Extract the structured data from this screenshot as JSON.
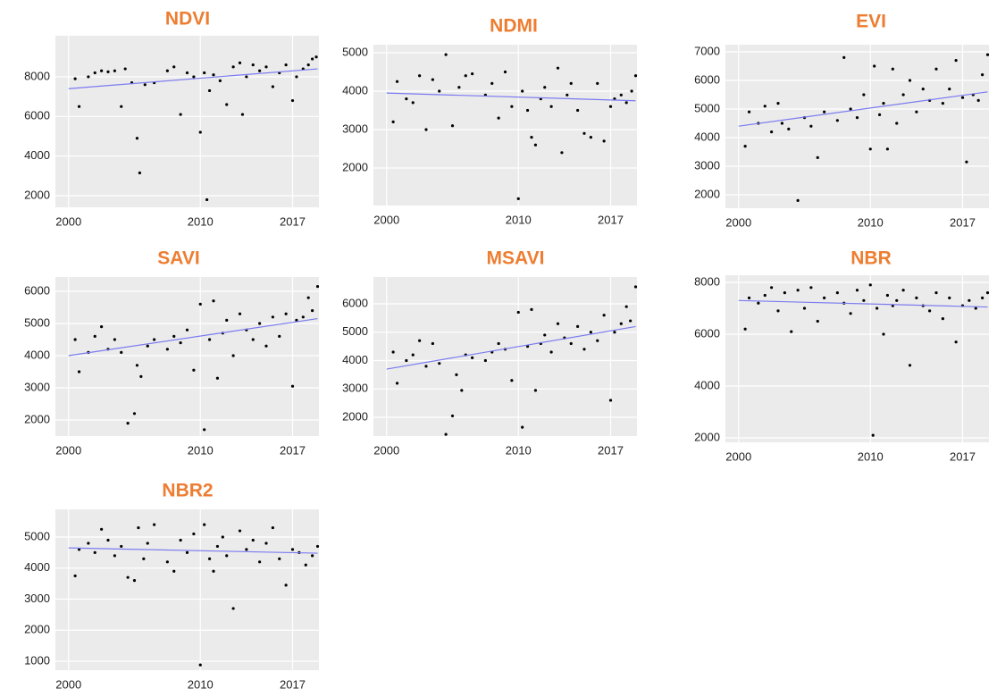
{
  "chart_data": [
    {
      "type": "scatter",
      "title": "NDVI",
      "color": "#000000",
      "x": [
        2000.5,
        2000.8,
        2001.5,
        2002,
        2002.5,
        2003,
        2003.5,
        2004,
        2004.3,
        2004.8,
        2005.2,
        2005.4,
        2005.8,
        2006.5,
        2007.5,
        2008,
        2008.5,
        2009,
        2009.5,
        2010,
        2010.3,
        2010.5,
        2010.7,
        2011,
        2011.5,
        2012,
        2012.5,
        2013,
        2013.2,
        2013.5,
        2014,
        2014.5,
        2015,
        2015.5,
        2016,
        2016.5,
        2017,
        2017.3,
        2017.8,
        2018.2,
        2018.5,
        2018.8
      ],
      "values": [
        7900,
        6500,
        8000,
        8200,
        8300,
        8250,
        8300,
        6500,
        8400,
        7700,
        4900,
        3150,
        7600,
        7700,
        8300,
        8500,
        6100,
        8200,
        8000,
        5200,
        8200,
        1800,
        7300,
        8100,
        7800,
        6600,
        8500,
        8700,
        6100,
        8000,
        8600,
        8300,
        8500,
        7500,
        8200,
        8600,
        6800,
        8000,
        8400,
        8600,
        8900,
        9000
      ],
      "trend": {
        "x": [
          2000,
          2018.9
        ],
        "values": [
          7400,
          8400
        ],
        "color": "#7b7bf0"
      },
      "xlim": [
        1999,
        2019
      ],
      "ylim": [
        1415,
        10070
      ],
      "xticks": [
        2000,
        2010,
        2017
      ],
      "yticks": [
        2000,
        4000,
        6000,
        8000
      ]
    },
    {
      "type": "scatter",
      "title": "NDMI",
      "color": "#000000",
      "x": [
        2000.5,
        2000.8,
        2001.5,
        2002,
        2002.5,
        2003,
        2003.5,
        2004,
        2004.5,
        2005,
        2005.5,
        2006,
        2006.5,
        2007.5,
        2008,
        2008.5,
        2009,
        2009.5,
        2010,
        2010.3,
        2010.7,
        2011,
        2011.3,
        2011.7,
        2012,
        2012.5,
        2013,
        2013.3,
        2013.7,
        2014,
        2014.5,
        2015,
        2015.5,
        2016,
        2016.5,
        2017,
        2017.3,
        2017.8,
        2018.2,
        2018.6,
        2018.9
      ],
      "values": [
        3200,
        4250,
        3800,
        3700,
        4400,
        3000,
        4300,
        4000,
        4950,
        3100,
        4100,
        4400,
        4450,
        3900,
        4200,
        3300,
        4500,
        3600,
        1200,
        4000,
        3500,
        2800,
        2600,
        3800,
        4100,
        3600,
        4600,
        2400,
        3900,
        4200,
        3500,
        2900,
        2800,
        4200,
        2700,
        3600,
        3800,
        3900,
        3700,
        4000,
        4400
      ],
      "trend": {
        "x": [
          2000,
          2018.9
        ],
        "values": [
          3950,
          3750
        ],
        "color": "#7b7bf0"
      },
      "xlim": [
        1999,
        2019
      ],
      "ylim": [
        1023,
        5209
      ],
      "xticks": [
        2000,
        2010,
        2017
      ],
      "yticks": [
        2000,
        3000,
        4000,
        5000
      ]
    },
    {
      "type": "scatter",
      "title": "EVI",
      "color": "#000000",
      "x": [
        2000.5,
        2000.8,
        2001.5,
        2002,
        2002.5,
        2003,
        2003.3,
        2003.8,
        2004.5,
        2005,
        2005.5,
        2006,
        2006.5,
        2007.5,
        2008,
        2008.5,
        2009,
        2009.5,
        2010,
        2010.3,
        2010.7,
        2011,
        2011.3,
        2011.7,
        2012,
        2012.5,
        2013,
        2013.5,
        2014,
        2014.5,
        2015,
        2015.5,
        2016,
        2016.5,
        2017,
        2017.3,
        2017.8,
        2018.2,
        2018.5,
        2018.9
      ],
      "values": [
        3700,
        4900,
        4500,
        5100,
        4200,
        5200,
        4500,
        4300,
        1800,
        4700,
        4400,
        3300,
        4900,
        4600,
        6800,
        5000,
        4700,
        5500,
        3600,
        6500,
        4800,
        5200,
        3600,
        6400,
        4500,
        5500,
        6000,
        4900,
        5700,
        5300,
        6400,
        5200,
        5700,
        6700,
        5400,
        3150,
        5500,
        5300,
        6200,
        6900
      ],
      "trend": {
        "x": [
          2000,
          2018.9
        ],
        "values": [
          4400,
          5600
        ],
        "color": "#7b7bf0"
      },
      "xlim": [
        1999,
        2019
      ],
      "ylim": [
        1531,
        7250
      ],
      "xticks": [
        2000,
        2010,
        2017
      ],
      "yticks": [
        2000,
        3000,
        4000,
        5000,
        6000,
        7000
      ]
    },
    {
      "type": "scatter",
      "title": "SAVI",
      "color": "#000000",
      "x": [
        2000.5,
        2000.8,
        2001.5,
        2002,
        2002.5,
        2003,
        2003.5,
        2004,
        2004.5,
        2005,
        2005.2,
        2005.5,
        2006,
        2006.5,
        2007.5,
        2008,
        2008.5,
        2009,
        2009.5,
        2010,
        2010.3,
        2010.7,
        2011,
        2011.3,
        2011.7,
        2012,
        2012.5,
        2013,
        2013.5,
        2014,
        2014.5,
        2015,
        2015.5,
        2016,
        2016.5,
        2017,
        2017.3,
        2017.8,
        2018.2,
        2018.5,
        2018.9
      ],
      "values": [
        4500,
        3500,
        4100,
        4600,
        4900,
        4200,
        4500,
        4100,
        1900,
        2200,
        3700,
        3350,
        4300,
        4500,
        4200,
        4600,
        4400,
        4800,
        3550,
        5600,
        1700,
        4500,
        5700,
        3300,
        4700,
        5100,
        4000,
        5300,
        4800,
        4500,
        5000,
        4300,
        5200,
        4600,
        5300,
        3050,
        5100,
        5200,
        5800,
        5400,
        6150
      ],
      "trend": {
        "x": [
          2000,
          2018.9
        ],
        "values": [
          4000,
          5150
        ],
        "color": "#7b7bf0"
      },
      "xlim": [
        1999,
        2019
      ],
      "ylim": [
        1500,
        6444
      ],
      "xticks": [
        2000,
        2010,
        2017
      ],
      "yticks": [
        2000,
        3000,
        4000,
        5000,
        6000
      ]
    },
    {
      "type": "scatter",
      "title": "MSAVI",
      "color": "#000000",
      "x": [
        2000.5,
        2000.8,
        2001.5,
        2002,
        2002.5,
        2003,
        2003.5,
        2004,
        2004.5,
        2005,
        2005.3,
        2005.7,
        2006,
        2006.5,
        2007.5,
        2008,
        2008.5,
        2009,
        2009.5,
        2010,
        2010.3,
        2010.7,
        2011,
        2011.3,
        2011.7,
        2012,
        2012.5,
        2013,
        2013.5,
        2014,
        2014.5,
        2015,
        2015.5,
        2016,
        2016.5,
        2017,
        2017.3,
        2017.8,
        2018.2,
        2018.5,
        2018.9
      ],
      "values": [
        4300,
        3200,
        4000,
        4200,
        4700,
        3800,
        4600,
        3900,
        1400,
        2050,
        3500,
        2950,
        4200,
        4100,
        4000,
        4300,
        4600,
        4400,
        3300,
        5700,
        1650,
        4500,
        5800,
        2950,
        4600,
        4900,
        4300,
        5300,
        4800,
        4600,
        5200,
        4400,
        5000,
        4700,
        5600,
        2600,
        5000,
        5300,
        5900,
        5400,
        6600
      ],
      "trend": {
        "x": [
          2000,
          2018.9
        ],
        "values": [
          3700,
          5200
        ],
        "color": "#7b7bf0"
      },
      "xlim": [
        1999,
        2019
      ],
      "ylim": [
        1339,
        6945
      ],
      "xticks": [
        2000,
        2010,
        2017
      ],
      "yticks": [
        2000,
        3000,
        4000,
        5000,
        6000
      ]
    },
    {
      "type": "scatter",
      "title": "NBR",
      "color": "#000000",
      "x": [
        2000.5,
        2000.8,
        2001.5,
        2002,
        2002.5,
        2003,
        2003.5,
        2004,
        2004.5,
        2005,
        2005.5,
        2006,
        2006.5,
        2007.5,
        2008,
        2008.5,
        2009,
        2009.5,
        2010,
        2010.2,
        2010.5,
        2011,
        2011.3,
        2011.7,
        2012,
        2012.5,
        2013,
        2013.5,
        2014,
        2014.5,
        2015,
        2015.5,
        2016,
        2016.5,
        2017,
        2017.5,
        2018,
        2018.5,
        2018.9
      ],
      "values": [
        6200,
        7400,
        7200,
        7500,
        7800,
        6900,
        7600,
        6100,
        7700,
        7000,
        7800,
        6500,
        7400,
        7600,
        7200,
        6800,
        7700,
        7300,
        7900,
        2100,
        7000,
        6000,
        7500,
        7100,
        7300,
        7700,
        4800,
        7400,
        7100,
        6900,
        7600,
        6600,
        7400,
        5700,
        7100,
        7300,
        7000,
        7400,
        7600
      ],
      "trend": {
        "x": [
          2000,
          2018.9
        ],
        "values": [
          7300,
          7050
        ],
        "color": "#7b7bf0"
      },
      "xlim": [
        1999,
        2019
      ],
      "ylim": [
        1828,
        8276
      ],
      "xticks": [
        2000,
        2010,
        2017
      ],
      "yticks": [
        2000,
        4000,
        6000,
        8000
      ]
    },
    {
      "type": "scatter",
      "title": "NBR2",
      "color": "#000000",
      "x": [
        2000.5,
        2000.8,
        2001.5,
        2002,
        2002.5,
        2003,
        2003.5,
        2004,
        2004.5,
        2005,
        2005.3,
        2005.7,
        2006,
        2006.5,
        2007.5,
        2008,
        2008.5,
        2009,
        2009.5,
        2010,
        2010.3,
        2010.7,
        2011,
        2011.3,
        2011.7,
        2012,
        2012.5,
        2013,
        2013.5,
        2014,
        2014.5,
        2015,
        2015.5,
        2016,
        2016.5,
        2017,
        2017.5,
        2018,
        2018.5,
        2018.9
      ],
      "values": [
        3750,
        4600,
        4800,
        4500,
        5250,
        4900,
        4400,
        4700,
        3700,
        3600,
        5300,
        4300,
        4800,
        5400,
        4200,
        3900,
        4900,
        4500,
        5100,
        880,
        5400,
        4300,
        3900,
        4700,
        5000,
        4400,
        2700,
        5200,
        4600,
        4900,
        4200,
        4800,
        5300,
        4300,
        3450,
        4600,
        4500,
        4100,
        4400,
        4700
      ],
      "trend": {
        "x": [
          2000,
          2018.9
        ],
        "values": [
          4650,
          4480
        ],
        "color": "#7b7bf0"
      },
      "xlim": [
        1999,
        2019
      ],
      "ylim": [
        712,
        5892
      ],
      "xticks": [
        2000,
        2010,
        2017
      ],
      "yticks": [
        1000,
        2000,
        3000,
        4000,
        5000
      ]
    }
  ]
}
